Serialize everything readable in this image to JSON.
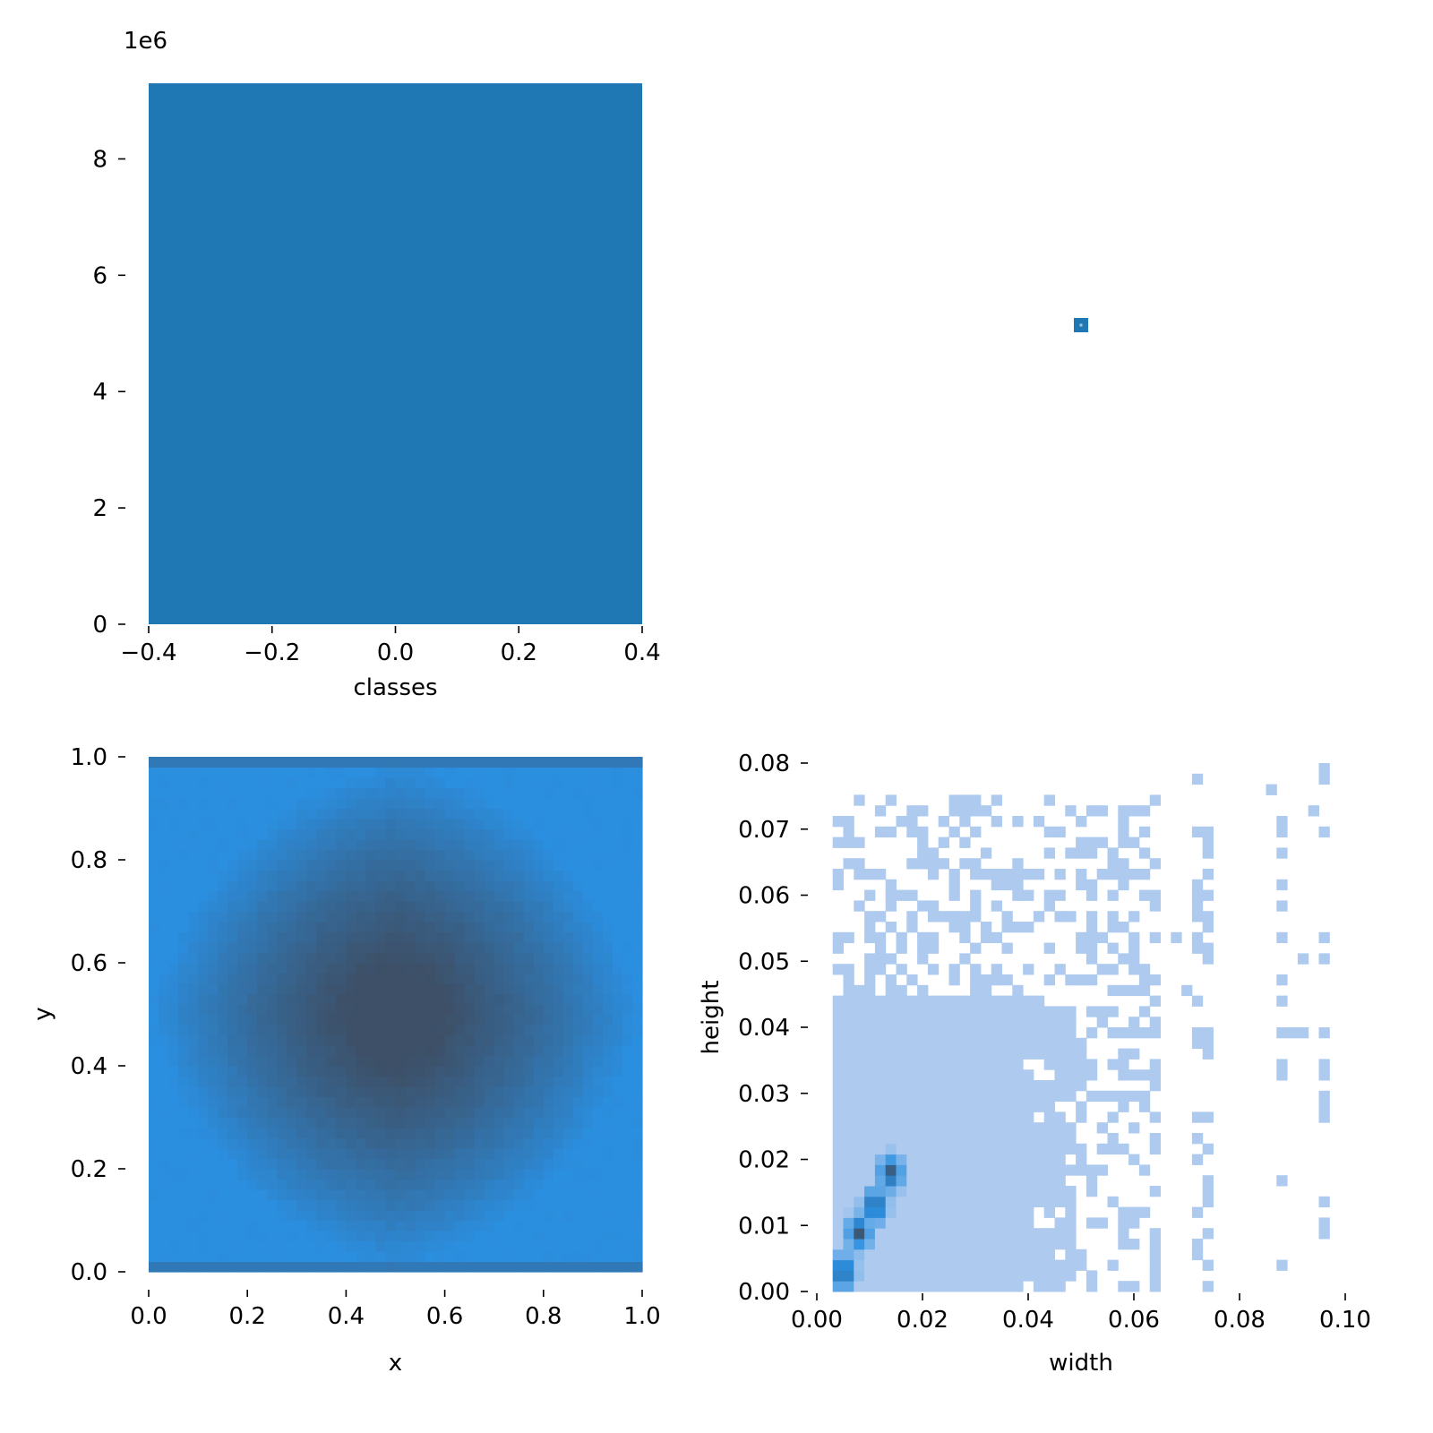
{
  "colors": {
    "bar": "#1f77b4",
    "hist_light": "#aecbef",
    "hist_mid": "#2b8fe0",
    "hist_dark": "#3d5068",
    "axis": "#000000"
  },
  "chart_data": [
    {
      "name": "classes",
      "type": "bar",
      "xlabel": "classes",
      "ylabel": "",
      "offset_text": "1e6",
      "xlim": [
        -0.4,
        0.4
      ],
      "ylim": [
        0,
        9.3
      ],
      "x_ticks": [
        -0.4,
        -0.2,
        0.0,
        0.2,
        0.4
      ],
      "x_tick_labels": [
        "−0.4",
        "−0.2",
        "0.0",
        "0.2",
        "0.4"
      ],
      "y_ticks": [
        0,
        2,
        4,
        6,
        8
      ],
      "y_tick_labels": [
        "0",
        "2",
        "4",
        "6",
        "8"
      ],
      "categories": [
        0
      ],
      "values": [
        9.3
      ],
      "bar_width": 0.8,
      "grid": false
    },
    {
      "name": "x-y",
      "type": "heatmap",
      "xlabel": "x",
      "ylabel": "y",
      "xlim": [
        0,
        1
      ],
      "ylim": [
        0,
        1
      ],
      "x_ticks": [
        0.0,
        0.2,
        0.4,
        0.6,
        0.8,
        1.0
      ],
      "x_tick_labels": [
        "0.0",
        "0.2",
        "0.4",
        "0.6",
        "0.8",
        "1.0"
      ],
      "y_ticks": [
        0.0,
        0.2,
        0.4,
        0.6,
        0.8,
        1.0
      ],
      "y_tick_labels": [
        "0.0",
        "0.2",
        "0.4",
        "0.6",
        "0.8",
        "1.0"
      ],
      "bins": 50,
      "peak": [
        0.5,
        0.5
      ],
      "description_shape": "density peaks at center (diamond), lightest near edges",
      "grid": false
    },
    {
      "name": "width-height",
      "type": "heatmap",
      "xlabel": "width",
      "ylabel": "height",
      "xlim": [
        0,
        0.1
      ],
      "ylim": [
        0,
        0.08
      ],
      "x_ticks": [
        0.0,
        0.02,
        0.04,
        0.06,
        0.08,
        0.1
      ],
      "x_tick_labels": [
        "0.00",
        "0.02",
        "0.04",
        "0.06",
        "0.08",
        "0.10"
      ],
      "y_ticks": [
        0.0,
        0.01,
        0.02,
        0.03,
        0.04,
        0.05,
        0.06,
        0.07,
        0.08
      ],
      "y_tick_labels": [
        "0.00",
        "0.01",
        "0.02",
        "0.03",
        "0.04",
        "0.05",
        "0.06",
        "0.07",
        "0.08"
      ],
      "bin_size": [
        0.002,
        0.0016
      ],
      "dense_region": {
        "width": [
          0.003,
          0.049
        ],
        "height": [
          0.0,
          0.045
        ]
      },
      "peak_ridge": [
        [
          0.005,
          0.003
        ],
        [
          0.008,
          0.009
        ],
        [
          0.011,
          0.013
        ],
        [
          0.014,
          0.018
        ]
      ],
      "grid": false
    },
    {
      "name": "x-y-marker",
      "type": "scatter",
      "xlabel": "",
      "ylabel": "",
      "points": [
        {
          "x": 0.5,
          "y": 0.5
        }
      ]
    }
  ]
}
